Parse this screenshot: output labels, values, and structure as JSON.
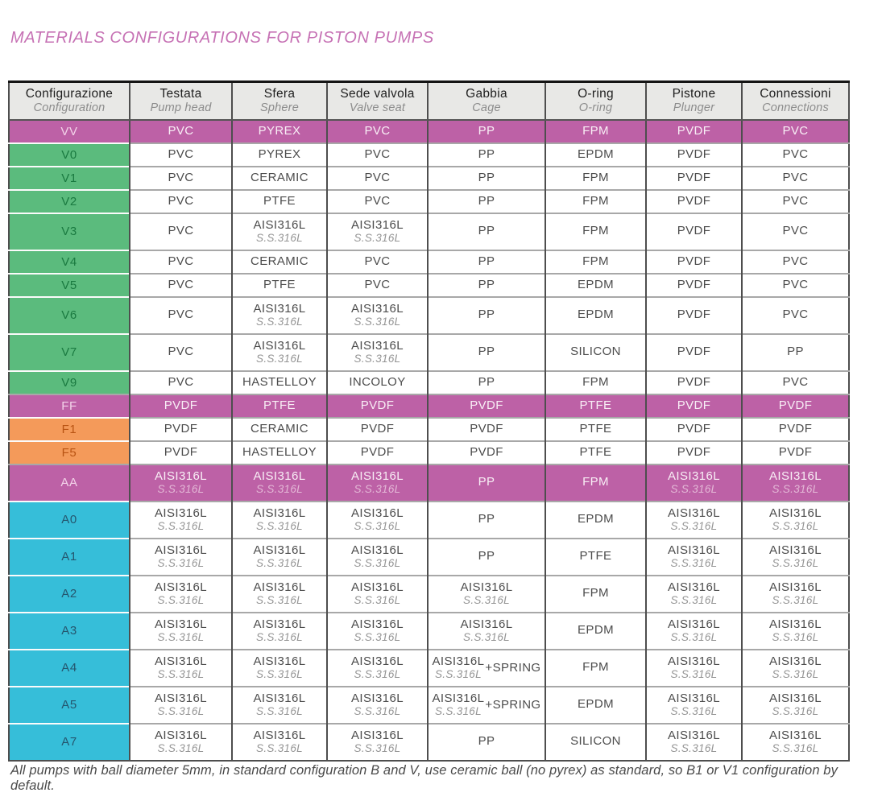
{
  "page": {
    "title": "MATERIALS CONFIGURATIONS FOR PISTON PUMPS",
    "footnote": "All pumps with ball diameter 5mm, in standard configuration B and V, use ceramic ball (no pyrex) as standard, so B1 or V1 configuration by default."
  },
  "colors": {
    "title": "#c671b4",
    "header_bg": "#e8e8e6",
    "cell_text": "#4c4c4c",
    "cell_sub": "#949494",
    "magenta_bg": "#bd61a6",
    "magenta_text": "#f8eef5",
    "magenta_config": "#f3d3e9",
    "magenta_sub": "#e4b9d7",
    "green_bg": "#5bbb7d",
    "green_text": "#1a7a40",
    "orange_bg": "#f49a5a",
    "orange_text": "#b95413",
    "cyan_bg": "#36bed9",
    "cyan_text": "#25566e"
  },
  "table": {
    "columns": [
      {
        "it": "Configurazione",
        "en": "Configuration"
      },
      {
        "it": "Testata",
        "en": "Pump head"
      },
      {
        "it": "Sfera",
        "en": "Sphere"
      },
      {
        "it": "Sede valvola",
        "en": "Valve seat"
      },
      {
        "it": "Gabbia",
        "en": "Cage"
      },
      {
        "it": "O-ring",
        "en": "O-ring"
      },
      {
        "it": "Pistone",
        "en": "Plunger"
      },
      {
        "it": "Connessioni",
        "en": "Connections"
      }
    ],
    "rows": [
      {
        "config": "VV",
        "style": "magenta",
        "cells": [
          {
            "v": "PVC"
          },
          {
            "v": "PYREX"
          },
          {
            "v": "PVC"
          },
          {
            "v": "PP"
          },
          {
            "v": "FPM"
          },
          {
            "v": "PVDF"
          },
          {
            "v": "PVC"
          }
        ]
      },
      {
        "config": "V0",
        "style": "green",
        "cells": [
          {
            "v": "PVC"
          },
          {
            "v": "PYREX"
          },
          {
            "v": "PVC"
          },
          {
            "v": "PP"
          },
          {
            "v": "EPDM"
          },
          {
            "v": "PVDF"
          },
          {
            "v": "PVC"
          }
        ]
      },
      {
        "config": "V1",
        "style": "green",
        "cells": [
          {
            "v": "PVC"
          },
          {
            "v": "CERAMIC"
          },
          {
            "v": "PVC"
          },
          {
            "v": "PP"
          },
          {
            "v": "FPM"
          },
          {
            "v": "PVDF"
          },
          {
            "v": "PVC"
          }
        ]
      },
      {
        "config": "V2",
        "style": "green",
        "cells": [
          {
            "v": "PVC"
          },
          {
            "v": "PTFE"
          },
          {
            "v": "PVC"
          },
          {
            "v": "PP"
          },
          {
            "v": "FPM"
          },
          {
            "v": "PVDF"
          },
          {
            "v": "PVC"
          }
        ]
      },
      {
        "config": "V3",
        "style": "green",
        "cells": [
          {
            "v": "PVC"
          },
          {
            "v": "AISI316L",
            "sub": "S.S.316L"
          },
          {
            "v": "AISI316L",
            "sub": "S.S.316L"
          },
          {
            "v": "PP"
          },
          {
            "v": "FPM"
          },
          {
            "v": "PVDF"
          },
          {
            "v": "PVC"
          }
        ]
      },
      {
        "config": "V4",
        "style": "green",
        "cells": [
          {
            "v": "PVC"
          },
          {
            "v": "CERAMIC"
          },
          {
            "v": "PVC"
          },
          {
            "v": "PP"
          },
          {
            "v": "FPM"
          },
          {
            "v": "PVDF"
          },
          {
            "v": "PVC"
          }
        ]
      },
      {
        "config": "V5",
        "style": "green",
        "cells": [
          {
            "v": "PVC"
          },
          {
            "v": "PTFE"
          },
          {
            "v": "PVC"
          },
          {
            "v": "PP"
          },
          {
            "v": "EPDM"
          },
          {
            "v": "PVDF"
          },
          {
            "v": "PVC"
          }
        ]
      },
      {
        "config": "V6",
        "style": "green",
        "cells": [
          {
            "v": "PVC"
          },
          {
            "v": "AISI316L",
            "sub": "S.S.316L"
          },
          {
            "v": "AISI316L",
            "sub": "S.S.316L"
          },
          {
            "v": "PP"
          },
          {
            "v": "EPDM"
          },
          {
            "v": "PVDF"
          },
          {
            "v": "PVC"
          }
        ]
      },
      {
        "config": "V7",
        "style": "green",
        "cells": [
          {
            "v": "PVC"
          },
          {
            "v": "AISI316L",
            "sub": "S.S.316L"
          },
          {
            "v": "AISI316L",
            "sub": "S.S.316L"
          },
          {
            "v": "PP"
          },
          {
            "v": "SILICON"
          },
          {
            "v": "PVDF"
          },
          {
            "v": "PP"
          }
        ]
      },
      {
        "config": "V9",
        "style": "green",
        "cells": [
          {
            "v": "PVC"
          },
          {
            "v": "HASTELLOY"
          },
          {
            "v": "INCOLOY"
          },
          {
            "v": "PP"
          },
          {
            "v": "FPM"
          },
          {
            "v": "PVDF"
          },
          {
            "v": "PVC"
          }
        ]
      },
      {
        "config": "FF",
        "style": "magenta",
        "cells": [
          {
            "v": "PVDF"
          },
          {
            "v": "PTFE"
          },
          {
            "v": "PVDF"
          },
          {
            "v": "PVDF"
          },
          {
            "v": "PTFE"
          },
          {
            "v": "PVDF"
          },
          {
            "v": "PVDF"
          }
        ]
      },
      {
        "config": "F1",
        "style": "orange",
        "cells": [
          {
            "v": "PVDF"
          },
          {
            "v": "CERAMIC"
          },
          {
            "v": "PVDF"
          },
          {
            "v": "PVDF"
          },
          {
            "v": "PTFE"
          },
          {
            "v": "PVDF"
          },
          {
            "v": "PVDF"
          }
        ]
      },
      {
        "config": "F5",
        "style": "orange",
        "cells": [
          {
            "v": "PVDF"
          },
          {
            "v": "HASTELLOY"
          },
          {
            "v": "PVDF"
          },
          {
            "v": "PVDF"
          },
          {
            "v": "PTFE"
          },
          {
            "v": "PVDF"
          },
          {
            "v": "PVDF"
          }
        ]
      },
      {
        "config": "AA",
        "style": "magenta",
        "cells": [
          {
            "v": "AISI316L",
            "sub": "S.S.316L"
          },
          {
            "v": "AISI316L",
            "sub": "S.S.316L"
          },
          {
            "v": "AISI316L",
            "sub": "S.S.316L"
          },
          {
            "v": "PP"
          },
          {
            "v": "FPM"
          },
          {
            "v": "AISI316L",
            "sub": "S.S.316L"
          },
          {
            "v": "AISI316L",
            "sub": "S.S.316L"
          }
        ]
      },
      {
        "config": "A0",
        "style": "cyan",
        "cells": [
          {
            "v": "AISI316L",
            "sub": "S.S.316L"
          },
          {
            "v": "AISI316L",
            "sub": "S.S.316L"
          },
          {
            "v": "AISI316L",
            "sub": "S.S.316L"
          },
          {
            "v": "PP"
          },
          {
            "v": "EPDM"
          },
          {
            "v": "AISI316L",
            "sub": "S.S.316L"
          },
          {
            "v": "AISI316L",
            "sub": "S.S.316L"
          }
        ]
      },
      {
        "config": "A1",
        "style": "cyan",
        "cells": [
          {
            "v": "AISI316L",
            "sub": "S.S.316L"
          },
          {
            "v": "AISI316L",
            "sub": "S.S.316L"
          },
          {
            "v": "AISI316L",
            "sub": "S.S.316L"
          },
          {
            "v": "PP"
          },
          {
            "v": "PTFE"
          },
          {
            "v": "AISI316L",
            "sub": "S.S.316L"
          },
          {
            "v": "AISI316L",
            "sub": "S.S.316L"
          }
        ]
      },
      {
        "config": "A2",
        "style": "cyan",
        "cells": [
          {
            "v": "AISI316L",
            "sub": "S.S.316L"
          },
          {
            "v": "AISI316L",
            "sub": "S.S.316L"
          },
          {
            "v": "AISI316L",
            "sub": "S.S.316L"
          },
          {
            "v": "AISI316L",
            "sub": "S.S.316L"
          },
          {
            "v": "FPM"
          },
          {
            "v": "AISI316L",
            "sub": "S.S.316L"
          },
          {
            "v": "AISI316L",
            "sub": "S.S.316L"
          }
        ]
      },
      {
        "config": "A3",
        "style": "cyan",
        "cells": [
          {
            "v": "AISI316L",
            "sub": "S.S.316L"
          },
          {
            "v": "AISI316L",
            "sub": "S.S.316L"
          },
          {
            "v": "AISI316L",
            "sub": "S.S.316L"
          },
          {
            "v": "AISI316L",
            "sub": "S.S.316L"
          },
          {
            "v": "EPDM"
          },
          {
            "v": "AISI316L",
            "sub": "S.S.316L"
          },
          {
            "v": "AISI316L",
            "sub": "S.S.316L"
          }
        ]
      },
      {
        "config": "A4",
        "style": "cyan",
        "cells": [
          {
            "v": "AISI316L",
            "sub": "S.S.316L"
          },
          {
            "v": "AISI316L",
            "sub": "S.S.316L"
          },
          {
            "v": "AISI316L",
            "sub": "S.S.316L"
          },
          {
            "v": "AISI316L",
            "sub": "S.S.316L",
            "suffix": "+SPRING"
          },
          {
            "v": "FPM"
          },
          {
            "v": "AISI316L",
            "sub": "S.S.316L"
          },
          {
            "v": "AISI316L",
            "sub": "S.S.316L"
          }
        ]
      },
      {
        "config": "A5",
        "style": "cyan",
        "cells": [
          {
            "v": "AISI316L",
            "sub": "S.S.316L"
          },
          {
            "v": "AISI316L",
            "sub": "S.S.316L"
          },
          {
            "v": "AISI316L",
            "sub": "S.S.316L"
          },
          {
            "v": "AISI316L",
            "sub": "S.S.316L",
            "suffix": "+SPRING"
          },
          {
            "v": "EPDM"
          },
          {
            "v": "AISI316L",
            "sub": "S.S.316L"
          },
          {
            "v": "AISI316L",
            "sub": "S.S.316L"
          }
        ]
      },
      {
        "config": "A7",
        "style": "cyan",
        "cells": [
          {
            "v": "AISI316L",
            "sub": "S.S.316L"
          },
          {
            "v": "AISI316L",
            "sub": "S.S.316L"
          },
          {
            "v": "AISI316L",
            "sub": "S.S.316L"
          },
          {
            "v": "PP"
          },
          {
            "v": "SILICON"
          },
          {
            "v": "AISI316L",
            "sub": "S.S.316L"
          },
          {
            "v": "AISI316L",
            "sub": "S.S.316L"
          }
        ]
      }
    ]
  }
}
